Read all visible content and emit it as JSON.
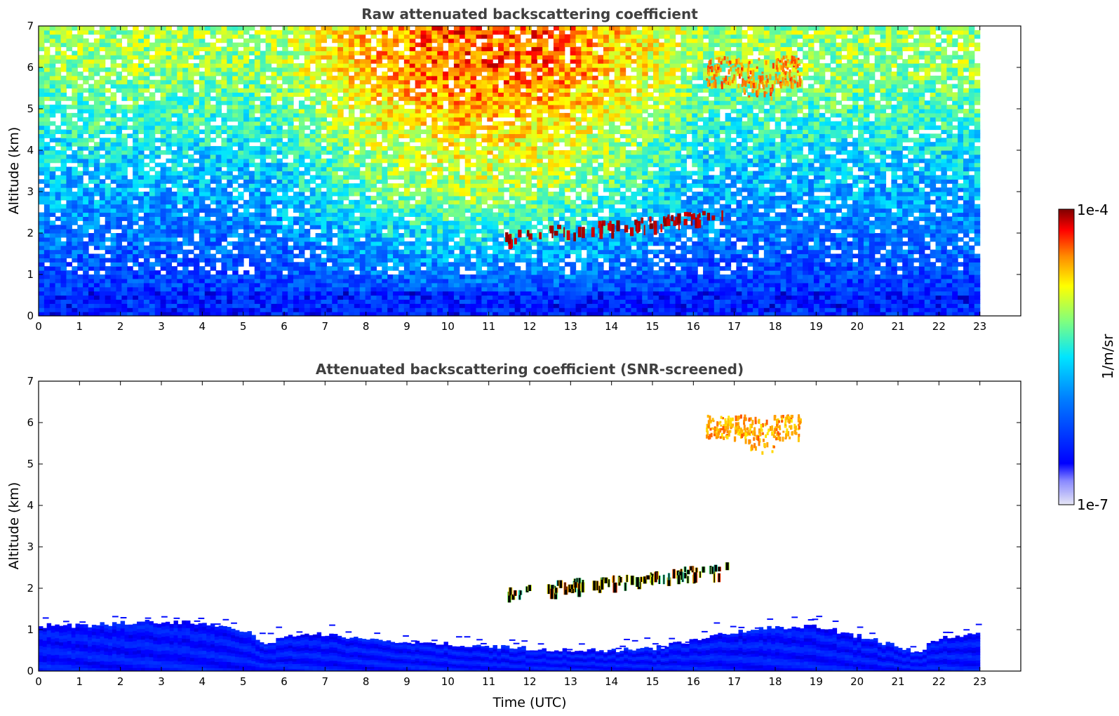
{
  "chart_data": [
    {
      "type": "heatmap",
      "title": "Raw attenuated backscattering coefficient",
      "xlabel": "",
      "ylabel": "Altitude (km)",
      "xlim": [
        0,
        24
      ],
      "ylim": [
        0,
        7
      ],
      "xticks": [
        0,
        1,
        2,
        3,
        4,
        5,
        6,
        7,
        8,
        9,
        10,
        11,
        12,
        13,
        14,
        15,
        16,
        17,
        18,
        19,
        20,
        21,
        22,
        23
      ],
      "yticks": [
        0,
        1,
        2,
        3,
        4,
        5,
        6,
        7
      ],
      "data_extent_hours": [
        0,
        23
      ],
      "features": [
        {
          "name": "boundary layer",
          "start_h": 0,
          "end_h": 23,
          "top_km": 0.6,
          "level": 0.15
        },
        {
          "name": "elevated layer",
          "start_h": 11.4,
          "end_h": 16.8,
          "base_km": 1.7,
          "top_km": 2.4,
          "level": 1.0
        },
        {
          "name": "cirrus",
          "start_h": 16.3,
          "end_h": 18.6,
          "base_km": 5.2,
          "top_km": 6.4,
          "level": 0.85
        },
        {
          "name": "daylight noise",
          "start_h": 5.6,
          "end_h": 16.3,
          "level": 0.8
        }
      ]
    },
    {
      "type": "heatmap",
      "title": "Attenuated backscattering coefficient (SNR-screened)",
      "xlabel": "Time (UTC)",
      "ylabel": "Altitude (km)",
      "xlim": [
        0,
        24
      ],
      "ylim": [
        0,
        7
      ],
      "xticks": [
        0,
        1,
        2,
        3,
        4,
        5,
        6,
        7,
        8,
        9,
        10,
        11,
        12,
        13,
        14,
        15,
        16,
        17,
        18,
        19,
        20,
        21,
        22,
        23
      ],
      "yticks": [
        0,
        1,
        2,
        3,
        4,
        5,
        6,
        7
      ],
      "data_extent_hours": [
        0,
        23
      ],
      "boundary_layer_top_km": [
        [
          0,
          1.1
        ],
        [
          1,
          1.1
        ],
        [
          2,
          1.15
        ],
        [
          3,
          1.2
        ],
        [
          4,
          1.15
        ],
        [
          5,
          1.0
        ],
        [
          5.6,
          0.65
        ],
        [
          6,
          0.85
        ],
        [
          7,
          0.9
        ],
        [
          8,
          0.75
        ],
        [
          9,
          0.7
        ],
        [
          10,
          0.65
        ],
        [
          11,
          0.6
        ],
        [
          12,
          0.55
        ],
        [
          13,
          0.5
        ],
        [
          14,
          0.5
        ],
        [
          15,
          0.55
        ],
        [
          16,
          0.75
        ],
        [
          17,
          0.95
        ],
        [
          18,
          1.05
        ],
        [
          19,
          1.1
        ],
        [
          20,
          0.85
        ],
        [
          21,
          0.6
        ],
        [
          21.5,
          0.45
        ],
        [
          22,
          0.8
        ],
        [
          23,
          0.95
        ]
      ],
      "features": [
        {
          "name": "elevated layer",
          "start_h": 11.4,
          "end_h": 16.8,
          "base_km": 1.7,
          "top_km": 2.4
        },
        {
          "name": "cirrus",
          "start_h": 16.3,
          "end_h": 18.6,
          "base_km": 5.3,
          "top_km": 6.4
        }
      ]
    }
  ],
  "colorbar": {
    "label": "1/m/sr",
    "max_label": "1e-4",
    "min_label": "1e-7",
    "colormap": "jet",
    "colors": [
      "#00007f",
      "#0000ff",
      "#007fff",
      "#00ffff",
      "#7fff7f",
      "#ffff00",
      "#ff7f00",
      "#ff0000",
      "#7f0000"
    ]
  }
}
